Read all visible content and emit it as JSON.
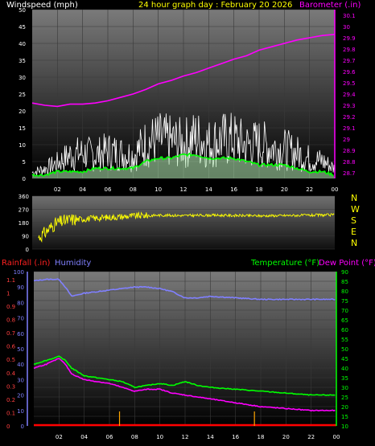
{
  "colors": {
    "windspeed": "#ffffff",
    "wind_avg": "#00ff00",
    "barometer": "#ff00ff",
    "direction": "#ffff00",
    "rainfall": "#ff0000",
    "humidity": "#8080ff",
    "temperature": "#00ff00",
    "dewpoint": "#ff00ff",
    "background": "#000000"
  },
  "chart_data": [
    {
      "type": "line",
      "title": "24 hour graph day : February 20 2026",
      "ylabel_left": "Windspeed (mph)",
      "ylabel_right": "Barometer (.in)",
      "xticks": [
        "02",
        "04",
        "06",
        "08",
        "10",
        "12",
        "14",
        "16",
        "18",
        "20",
        "22",
        "00"
      ],
      "yticks_left": [
        0,
        5,
        10,
        15,
        20,
        25,
        30,
        35,
        40,
        45,
        50
      ],
      "yticks_right": [
        "28.7",
        "28.8",
        "28.9",
        "29",
        "29.1",
        "29.2",
        "29.3",
        "29.4",
        "29.5",
        "29.6",
        "29.7",
        "29.8",
        "29.9",
        "30",
        "30.1"
      ],
      "ylim_left": [
        0,
        50
      ],
      "ylim_right": [
        28.65,
        30.15
      ],
      "grid": true,
      "series": [
        {
          "name": "Barometer",
          "axis": "right",
          "x": [
            0,
            1,
            2,
            3,
            4,
            5,
            6,
            7,
            8,
            9,
            10,
            11,
            12,
            13,
            14,
            15,
            16,
            17,
            18,
            19,
            20,
            21,
            22,
            23,
            24
          ],
          "values": [
            29.32,
            29.3,
            29.29,
            29.31,
            29.31,
            29.32,
            29.34,
            29.37,
            29.4,
            29.44,
            29.49,
            29.52,
            29.56,
            29.59,
            29.63,
            29.67,
            29.71,
            29.74,
            29.79,
            29.82,
            29.85,
            29.88,
            29.9,
            29.92,
            29.93
          ]
        },
        {
          "name": "Wind average",
          "axis": "left",
          "x": [
            0,
            1,
            2,
            3,
            4,
            5,
            6,
            7,
            8,
            9,
            10,
            11,
            12,
            13,
            14,
            15,
            16,
            17,
            18,
            19,
            20,
            21,
            22,
            23,
            24
          ],
          "values": [
            1,
            1,
            2,
            2,
            2,
            3,
            3,
            3,
            3,
            5,
            6,
            6,
            7,
            7,
            6,
            6,
            6,
            5,
            4,
            4,
            4,
            3,
            2,
            2,
            1
          ]
        },
        {
          "name": "Wind gust",
          "axis": "left",
          "x": [
            0,
            1,
            2,
            3,
            4,
            5,
            6,
            7,
            8,
            9,
            10,
            11,
            12,
            13,
            14,
            15,
            16,
            17,
            18,
            19,
            20,
            21,
            22,
            23,
            24
          ],
          "values": [
            3,
            5,
            8,
            12,
            13,
            12,
            14,
            13,
            12,
            18,
            20,
            19,
            18,
            21,
            18,
            20,
            20,
            17,
            18,
            16,
            15,
            13,
            10,
            9,
            5
          ]
        }
      ]
    },
    {
      "type": "line",
      "ylim": [
        0,
        360
      ],
      "yticks": [
        0,
        90,
        180,
        270,
        360
      ],
      "compass": [
        "N",
        "W",
        "S",
        "E",
        "N"
      ],
      "series": [
        {
          "name": "Wind direction",
          "x": [
            0,
            0.5,
            1,
            1.5,
            2,
            2.5,
            3,
            4,
            5,
            6,
            7,
            8,
            9,
            10,
            12,
            14,
            16,
            18,
            20,
            22,
            24
          ],
          "values": [
            50,
            80,
            110,
            150,
            180,
            190,
            200,
            205,
            210,
            215,
            220,
            225,
            228,
            230,
            228,
            230,
            228,
            226,
            228,
            230,
            232
          ]
        }
      ]
    },
    {
      "type": "line",
      "ylabel_left_outer": "Rainfall (.in)",
      "ylabel_left_inner": "Humidity",
      "ylabel_right": "Temperature (°F)",
      "ylabel_right2": "Dew Point (°F)",
      "xticks": [
        "02",
        "04",
        "06",
        "08",
        "10",
        "12",
        "14",
        "16",
        "18",
        "20",
        "22",
        "00"
      ],
      "yticks_rain": [
        "0",
        "0.1",
        "0.2",
        "0.3",
        "0.4",
        "0.5",
        "0.6",
        "0.7",
        "0.8",
        "0.9",
        "1",
        "1.1"
      ],
      "yticks_humidity": [
        0,
        10,
        20,
        30,
        40,
        50,
        60,
        70,
        80,
        90,
        100
      ],
      "yticks_temp": [
        10,
        15,
        20,
        25,
        30,
        35,
        40,
        45,
        50,
        55,
        60,
        65,
        70,
        75,
        80,
        85,
        90
      ],
      "ylim_temp": [
        10,
        90
      ],
      "grid": true,
      "series": [
        {
          "name": "Humidity",
          "axis": "humidity",
          "x": [
            0,
            1,
            2,
            2.5,
            3,
            4,
            5,
            6,
            7,
            8,
            9,
            10,
            11,
            12,
            13,
            14,
            16,
            18,
            20,
            22,
            24
          ],
          "values": [
            94,
            95,
            95,
            90,
            84,
            86,
            87,
            88,
            89,
            90,
            90,
            89,
            87,
            83,
            83,
            84,
            83,
            82,
            82,
            82,
            82
          ]
        },
        {
          "name": "Temperature",
          "axis": "temp",
          "x": [
            0,
            1,
            2,
            2.5,
            3,
            4,
            5,
            6,
            7,
            8,
            9,
            10,
            11,
            12,
            13,
            14,
            16,
            18,
            20,
            22,
            24
          ],
          "values": [
            42,
            44,
            46,
            44,
            40,
            36,
            35,
            34,
            33,
            30,
            31,
            32,
            31,
            33,
            31,
            30,
            29,
            28,
            27,
            26,
            26
          ]
        },
        {
          "name": "Dew Point",
          "axis": "temp",
          "x": [
            0,
            1,
            2,
            2.5,
            3,
            4,
            5,
            6,
            7,
            8,
            9,
            10,
            11,
            12,
            13,
            14,
            16,
            18,
            20,
            22,
            24
          ],
          "values": [
            40,
            42,
            45,
            42,
            37,
            34,
            33,
            32,
            30,
            28,
            29,
            29,
            27,
            26,
            25,
            24,
            22,
            20,
            19,
            18,
            18
          ]
        },
        {
          "name": "Rainfall",
          "axis": "rain",
          "x": [
            0,
            24
          ],
          "values": [
            0,
            0
          ]
        }
      ],
      "rain_markers_x": [
        6.8,
        17.5
      ]
    }
  ]
}
